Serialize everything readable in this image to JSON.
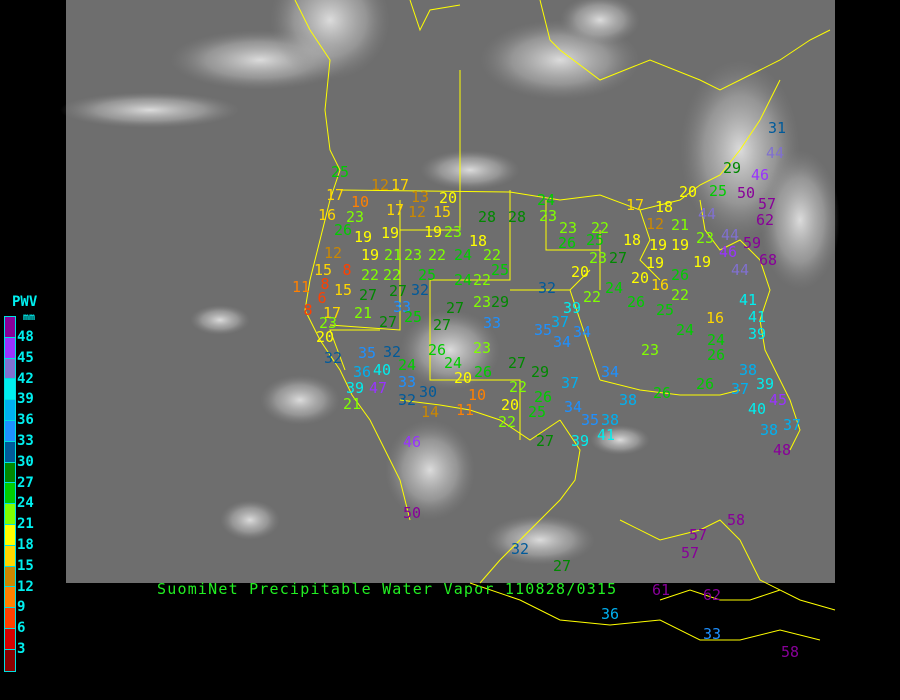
{
  "title": "SuomiNet Precipitable Water Vapor 110828/0315",
  "legend": {
    "label": "PWV",
    "unit": "mm",
    "ticks": [
      "48",
      "45",
      "42",
      "39",
      "36",
      "33",
      "30",
      "27",
      "24",
      "21",
      "18",
      "15",
      "12",
      "9",
      "6",
      "3"
    ],
    "colors": [
      "#880099",
      "#9933ff",
      "#8070d0",
      "#00eeee",
      "#00b0f0",
      "#1e90ff",
      "#005a9a",
      "#008800",
      "#00cc00",
      "#80ff00",
      "#ffff00",
      "#ffd700",
      "#cc8800",
      "#ff8000",
      "#ff4000",
      "#d40000",
      "#8b0000"
    ]
  },
  "stations": [
    17,
    12,
    17,
    10,
    17,
    13,
    20,
    12,
    15,
    16,
    23,
    26,
    19,
    19,
    19,
    23,
    18,
    12,
    19,
    21,
    23,
    22,
    24,
    22,
    25,
    15,
    8,
    22,
    22,
    25,
    24,
    22,
    8,
    15,
    27,
    27,
    32,
    23,
    29,
    6,
    33,
    8,
    17,
    27,
    21,
    27,
    25,
    27,
    33,
    23,
    35,
    37,
    34,
    34,
    39,
    32,
    20,
    32,
    35,
    32,
    26,
    23,
    36,
    40,
    24,
    24,
    26,
    20,
    27,
    29,
    39,
    47,
    33,
    30,
    22,
    26,
    37,
    10,
    32,
    14,
    11,
    20,
    25,
    34,
    35,
    22,
    21,
    46,
    50,
    32,
    36,
    33,
    57,
    57,
    61,
    62,
    58,
    27,
    39,
    41,
    38,
    38,
    34,
    26,
    26,
    37,
    39,
    38,
    40,
    38,
    37,
    48,
    45,
    24,
    26,
    39,
    41,
    41,
    16,
    24,
    23,
    25,
    22,
    26,
    24,
    22,
    20,
    23,
    27,
    25,
    26,
    23,
    22,
    24,
    23,
    28,
    28,
    18,
    19,
    19,
    18,
    12,
    17,
    20,
    25,
    29,
    44,
    21,
    23,
    19,
    20,
    19,
    16,
    26,
    44,
    46,
    59,
    44,
    68,
    62,
    57,
    50,
    46,
    44,
    31,
    11,
    25,
    27,
    58
  ],
  "colors": {
    "background": "#000000",
    "border": "#ffff00",
    "title": "#22ee22",
    "legend_text": "#00f0f0"
  }
}
